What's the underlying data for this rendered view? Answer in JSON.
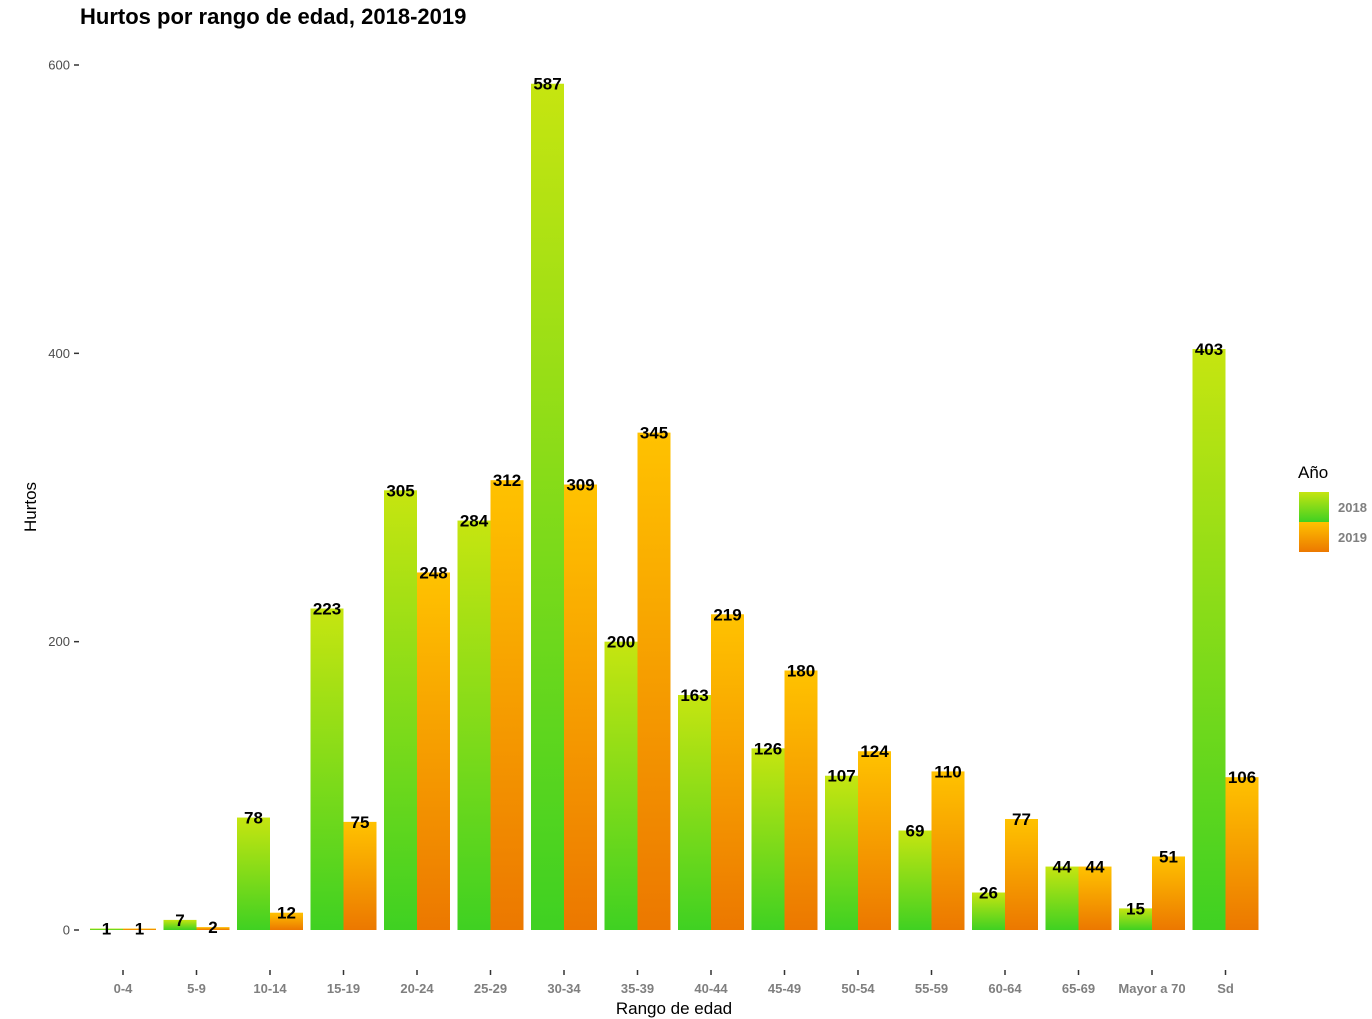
{
  "chart_data": {
    "type": "bar",
    "title": "Hurtos por rango de edad, 2018-2019",
    "xlabel": "Rango de edad",
    "ylabel": "Hurtos",
    "ylim": [
      0,
      600
    ],
    "yticks": [
      0,
      200,
      400,
      600
    ],
    "grid": false,
    "legend": {
      "title": "Año",
      "placement": "right"
    },
    "categories": [
      "0-4",
      "5-9",
      "10-14",
      "15-19",
      "20-24",
      "25-29",
      "30-34",
      "35-39",
      "40-44",
      "45-49",
      "50-54",
      "55-59",
      "60-64",
      "65-69",
      "Mayor a 70",
      "Sd"
    ],
    "series": [
      {
        "name": "2018",
        "values": [
          1,
          7,
          78,
          223,
          305,
          284,
          587,
          200,
          163,
          126,
          107,
          69,
          26,
          44,
          15,
          403
        ],
        "gradient_top": "#c6e510",
        "gradient_bottom": "#3fd122"
      },
      {
        "name": "2019",
        "values": [
          1,
          2,
          12,
          75,
          248,
          312,
          309,
          345,
          219,
          180,
          124,
          110,
          77,
          44,
          51,
          106
        ],
        "gradient_top": "#ffc200",
        "gradient_bottom": "#ec7800"
      }
    ]
  }
}
